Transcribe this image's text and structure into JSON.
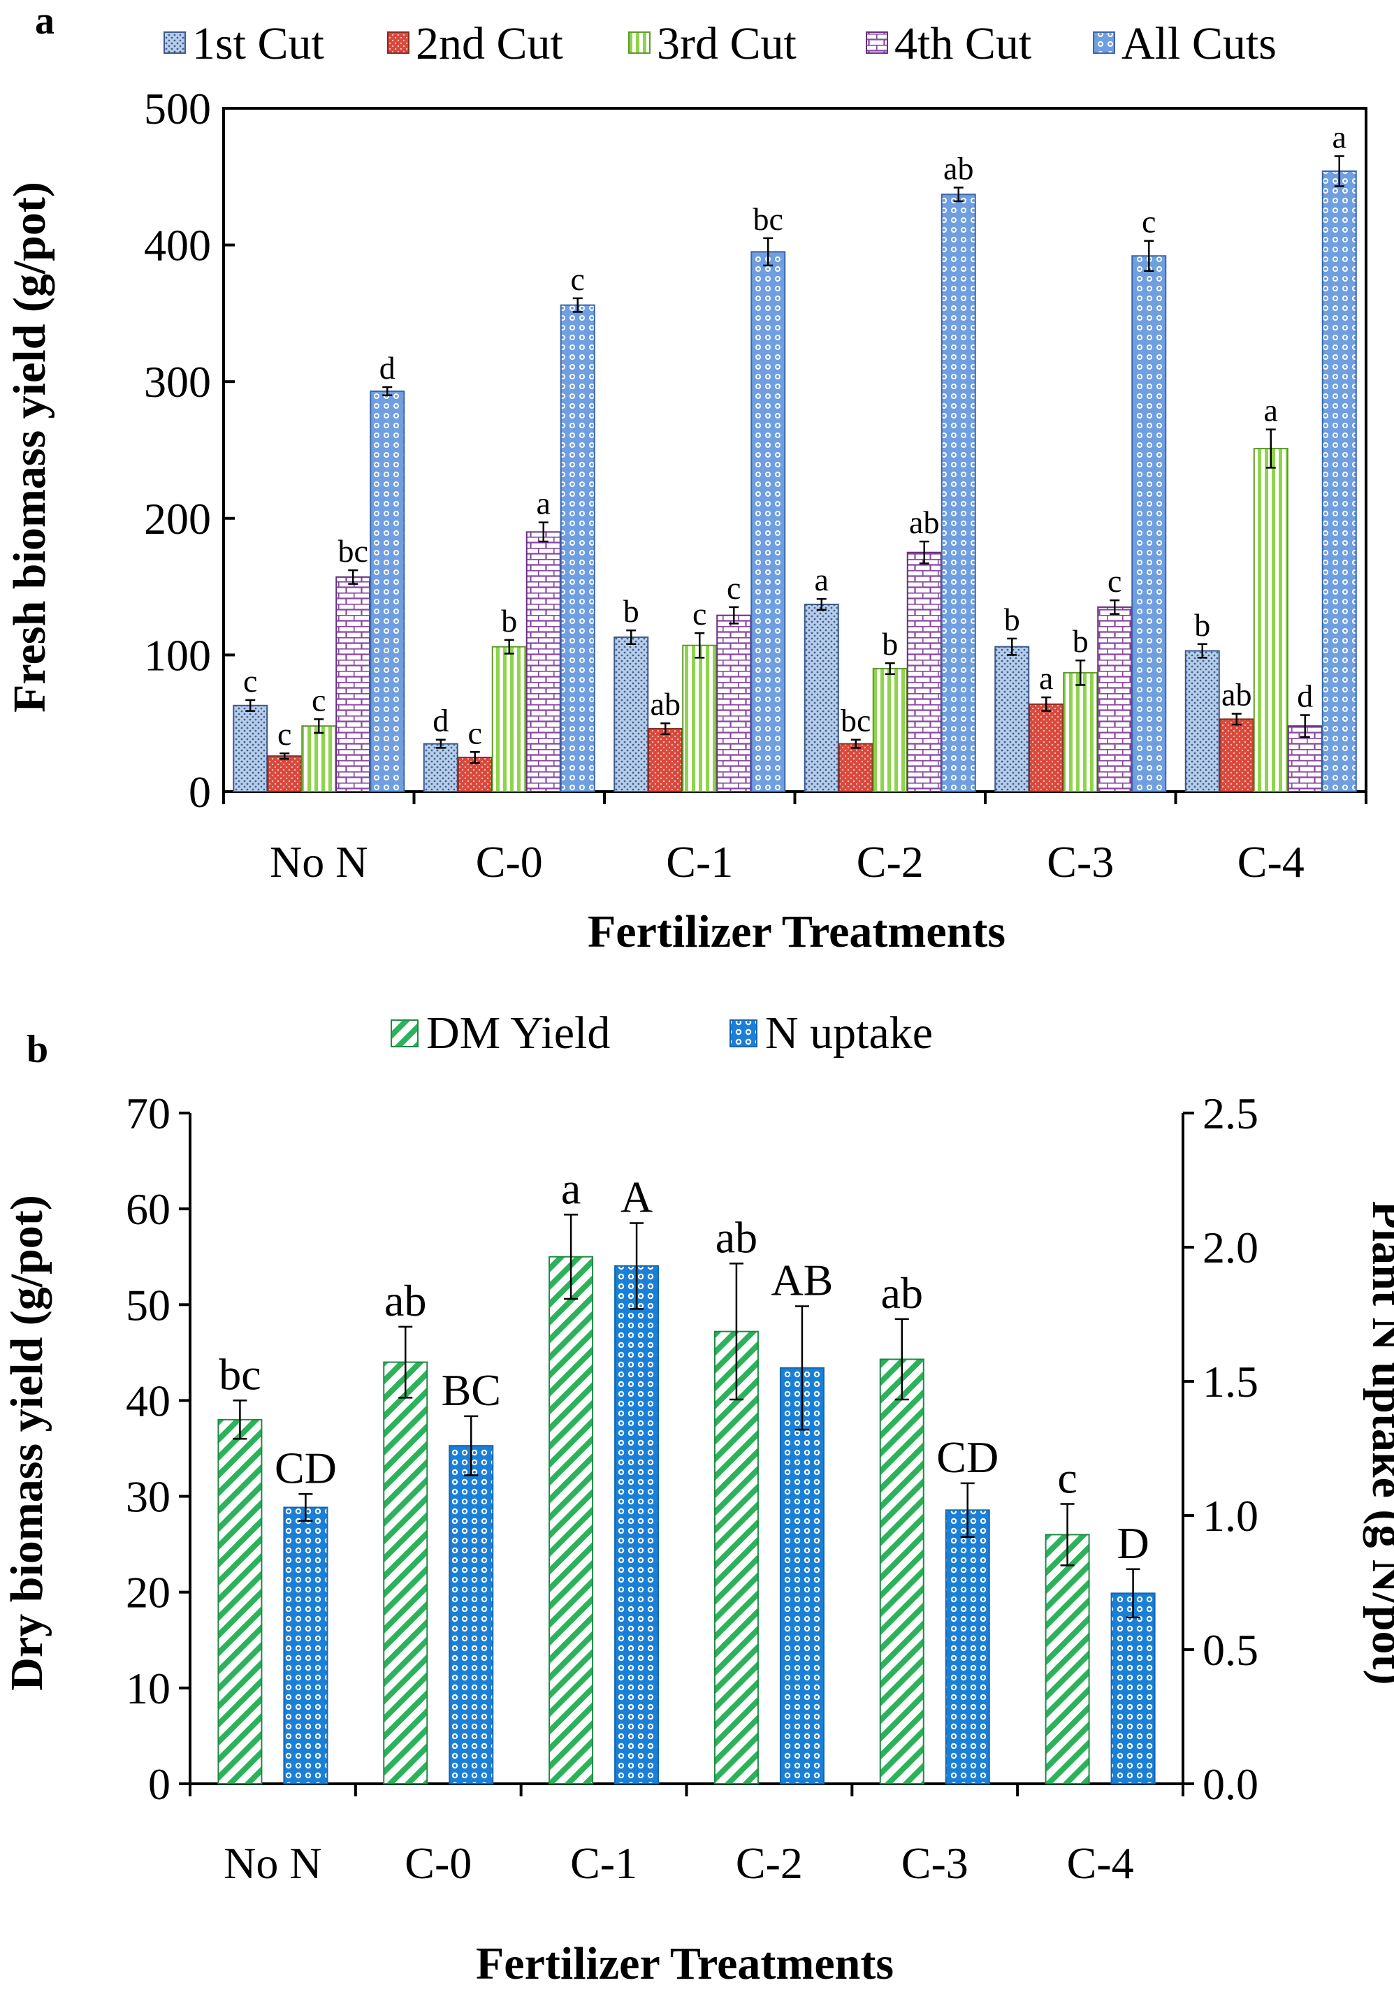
{
  "chart_data": [
    {
      "panel": "a",
      "type": "bar",
      "title": "",
      "xlabel": "Fertilizer Treatments",
      "ylabel": "Fresh biomass yield (g/pot)",
      "ylim": [
        0,
        500
      ],
      "yticks": [
        "0",
        "100",
        "200",
        "300",
        "400",
        "500"
      ],
      "categories": [
        "No N",
        "C-0",
        "C-1",
        "C-2",
        "C-3",
        "C-4"
      ],
      "legend_position": "top",
      "series": [
        {
          "name": "1st Cut",
          "color": "#a9c3e8",
          "values": [
            63,
            35,
            113,
            137,
            106,
            103
          ],
          "errors": [
            4,
            3,
            5,
            4,
            6,
            5
          ],
          "letters": [
            "c",
            "d",
            "b",
            "a",
            "b",
            "b"
          ]
        },
        {
          "name": "2nd Cut",
          "color": "#d9483b",
          "values": [
            26,
            25,
            46,
            35,
            64,
            53
          ],
          "errors": [
            2,
            4,
            4,
            3,
            5,
            4
          ],
          "letters": [
            "c",
            "c",
            "ab",
            "bc",
            "a",
            "ab"
          ]
        },
        {
          "name": "3rd Cut",
          "color": "#8fd44c",
          "values": [
            48,
            106,
            107,
            90,
            87,
            251
          ],
          "errors": [
            5,
            5,
            9,
            4,
            9,
            14
          ],
          "letters": [
            "c",
            "b",
            "c",
            "b",
            "b",
            "a"
          ]
        },
        {
          "name": "4th Cut",
          "color": "#8a47a3",
          "values": [
            157,
            190,
            129,
            175,
            135,
            48
          ],
          "errors": [
            5,
            7,
            6,
            8,
            5,
            8
          ],
          "letters": [
            "bc",
            "a",
            "c",
            "ab",
            "c",
            "d"
          ]
        },
        {
          "name": "All Cuts",
          "color": "#6f9fe0",
          "values": [
            293,
            356,
            395,
            437,
            392,
            454
          ],
          "errors": [
            3,
            5,
            10,
            5,
            11,
            11
          ],
          "letters": [
            "d",
            "c",
            "bc",
            "ab",
            "c",
            "a"
          ]
        }
      ]
    },
    {
      "panel": "b",
      "type": "bar",
      "title": "",
      "xlabel": "Fertilizer Treatments",
      "ylabel": "Dry biomass yield (g/pot)",
      "y2label": "Plant N uptake (g N/pot)",
      "ylim": [
        0,
        70
      ],
      "y2lim": [
        0,
        2.5
      ],
      "yticks": [
        "0",
        "10",
        "20",
        "30",
        "40",
        "50",
        "60",
        "70"
      ],
      "y2ticks": [
        "0.0",
        "0.5",
        "1.0",
        "1.5",
        "2.0",
        "2.5"
      ],
      "categories": [
        "No N",
        "C-0",
        "C-1",
        "C-2",
        "C-3",
        "C-4"
      ],
      "legend_position": "top",
      "series": [
        {
          "name": "DM Yield",
          "axis": "left",
          "color": "#2bb25a",
          "values": [
            38,
            44,
            55,
            47.2,
            44.3,
            26
          ],
          "errors": [
            2,
            3.7,
            4.4,
            7.1,
            4.2,
            3.2
          ],
          "letters": [
            "bc",
            "ab",
            "a",
            "ab",
            "ab",
            "c"
          ]
        },
        {
          "name": "N uptake",
          "axis": "right",
          "color": "#1a7fd6",
          "values": [
            1.03,
            1.26,
            1.93,
            1.55,
            1.02,
            0.71
          ],
          "errors": [
            0.05,
            0.11,
            0.16,
            0.23,
            0.1,
            0.09
          ],
          "letters": [
            "CD",
            "BC",
            "A",
            "AB",
            "CD",
            "D"
          ]
        }
      ]
    }
  ],
  "panel_labels": [
    "a",
    "b"
  ]
}
